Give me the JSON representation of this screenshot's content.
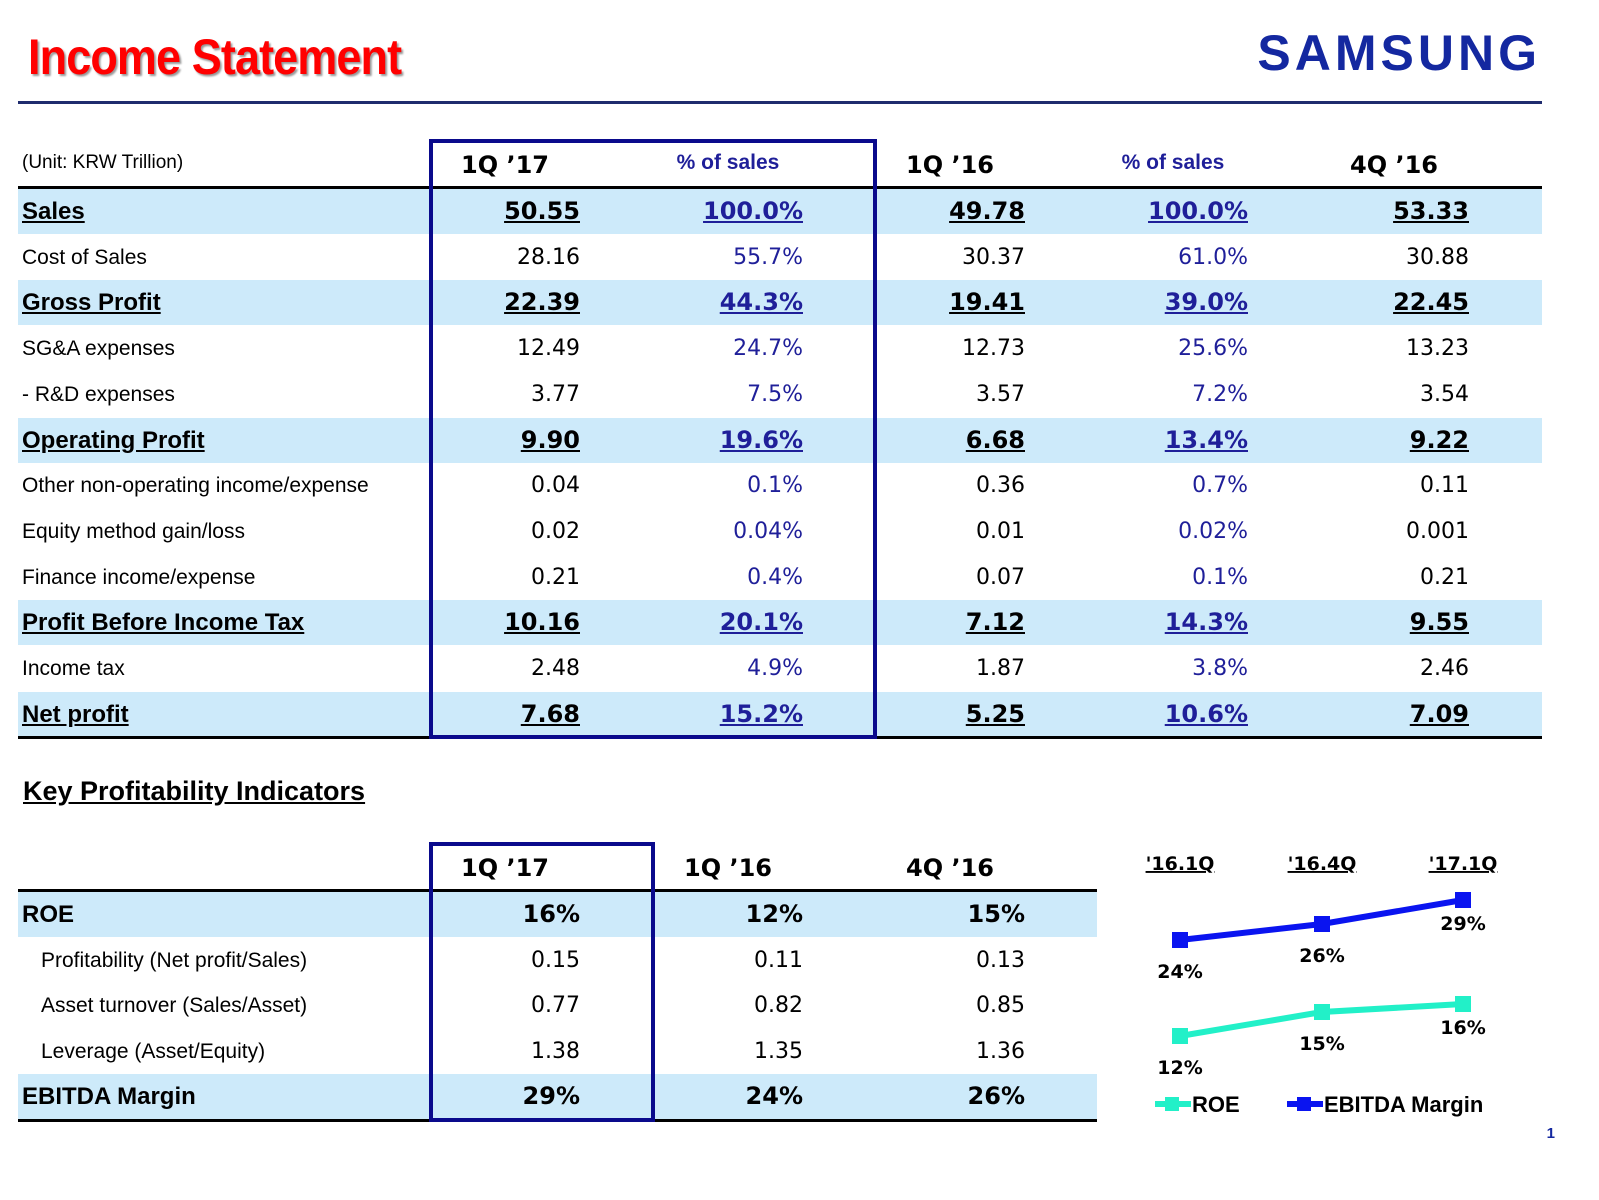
{
  "header": {
    "title": "Income Statement",
    "logo": "SAMSUNG",
    "page_number": "1"
  },
  "income": {
    "unit": "(Unit: KRW Trillion)",
    "columns": [
      "1Q ’17",
      "% of sales",
      "1Q ’16",
      "% of sales",
      "4Q ’16"
    ],
    "rows": [
      {
        "label": "Sales",
        "bold": true,
        "values": [
          "50.55",
          "100.0%",
          "49.78",
          "100.0%",
          "53.33"
        ]
      },
      {
        "label": "Cost of Sales",
        "bold": false,
        "values": [
          "28.16",
          "55.7%",
          "30.37",
          "61.0%",
          "30.88"
        ]
      },
      {
        "label": "Gross Profit",
        "bold": true,
        "values": [
          "22.39",
          "44.3%",
          "19.41",
          "39.0%",
          "22.45"
        ]
      },
      {
        "label": "SG&A expenses",
        "bold": false,
        "values": [
          "12.49",
          "24.7%",
          "12.73",
          "25.6%",
          "13.23"
        ]
      },
      {
        "label": " - R&D expenses",
        "bold": false,
        "values": [
          "3.77",
          "7.5%",
          "3.57",
          "7.2%",
          "3.54"
        ]
      },
      {
        "label": "Operating Profit",
        "bold": true,
        "values": [
          "9.90",
          "19.6%",
          "6.68",
          "13.4%",
          "9.22"
        ]
      },
      {
        "label": "Other non-operating income/expense",
        "bold": false,
        "values": [
          "0.04",
          "0.1%",
          "0.36",
          "0.7%",
          "0.11"
        ]
      },
      {
        "label": "Equity method gain/loss",
        "bold": false,
        "values": [
          "0.02",
          "0.04%",
          "0.01",
          "0.02%",
          "0.001"
        ]
      },
      {
        "label": "Finance income/expense",
        "bold": false,
        "values": [
          "0.21",
          "0.4%",
          "0.07",
          "0.1%",
          "0.21"
        ]
      },
      {
        "label": "Profit Before Income Tax",
        "bold": true,
        "values": [
          "10.16",
          "20.1%",
          "7.12",
          "14.3%",
          "9.55"
        ]
      },
      {
        "label": "Income tax",
        "bold": false,
        "values": [
          "2.48",
          "4.9%",
          "1.87",
          "3.8%",
          "2.46"
        ]
      },
      {
        "label": "Net profit",
        "bold": true,
        "values": [
          "7.68",
          "15.2%",
          "5.25",
          "10.6%",
          "7.09"
        ]
      }
    ]
  },
  "kpi": {
    "title": "Key Profitability Indicators",
    "columns": [
      "1Q ’17",
      "1Q ’16",
      "4Q ’16"
    ],
    "rows": [
      {
        "label": "ROE",
        "bold": true,
        "values": [
          "16%",
          "12%",
          "15%"
        ]
      },
      {
        "label": "Profitability (Net profit/Sales)",
        "bold": false,
        "values": [
          "0.15",
          "0.11",
          "0.13"
        ]
      },
      {
        "label": "Asset turnover (Sales/Asset)",
        "bold": false,
        "values": [
          "0.77",
          "0.82",
          "0.85"
        ]
      },
      {
        "label": "Leverage (Asset/Equity)",
        "bold": false,
        "values": [
          "1.38",
          "1.35",
          "1.36"
        ]
      },
      {
        "label": "EBITDA Margin",
        "bold": true,
        "values": [
          "29%",
          "24%",
          "26%"
        ]
      }
    ]
  },
  "chart_data": {
    "type": "line",
    "categories": [
      "'16.1Q",
      "'16.4Q",
      "'17.1Q"
    ],
    "series": [
      {
        "name": "ROE",
        "color": "#22f0c8",
        "values": [
          12,
          15,
          16
        ],
        "labels": [
          "12%",
          "15%",
          "16%"
        ]
      },
      {
        "name": "EBITDA Margin",
        "color": "#0a14f0",
        "values": [
          24,
          26,
          29
        ],
        "labels": [
          "24%",
          "26%",
          "29%"
        ]
      }
    ],
    "legend": "bottom"
  }
}
